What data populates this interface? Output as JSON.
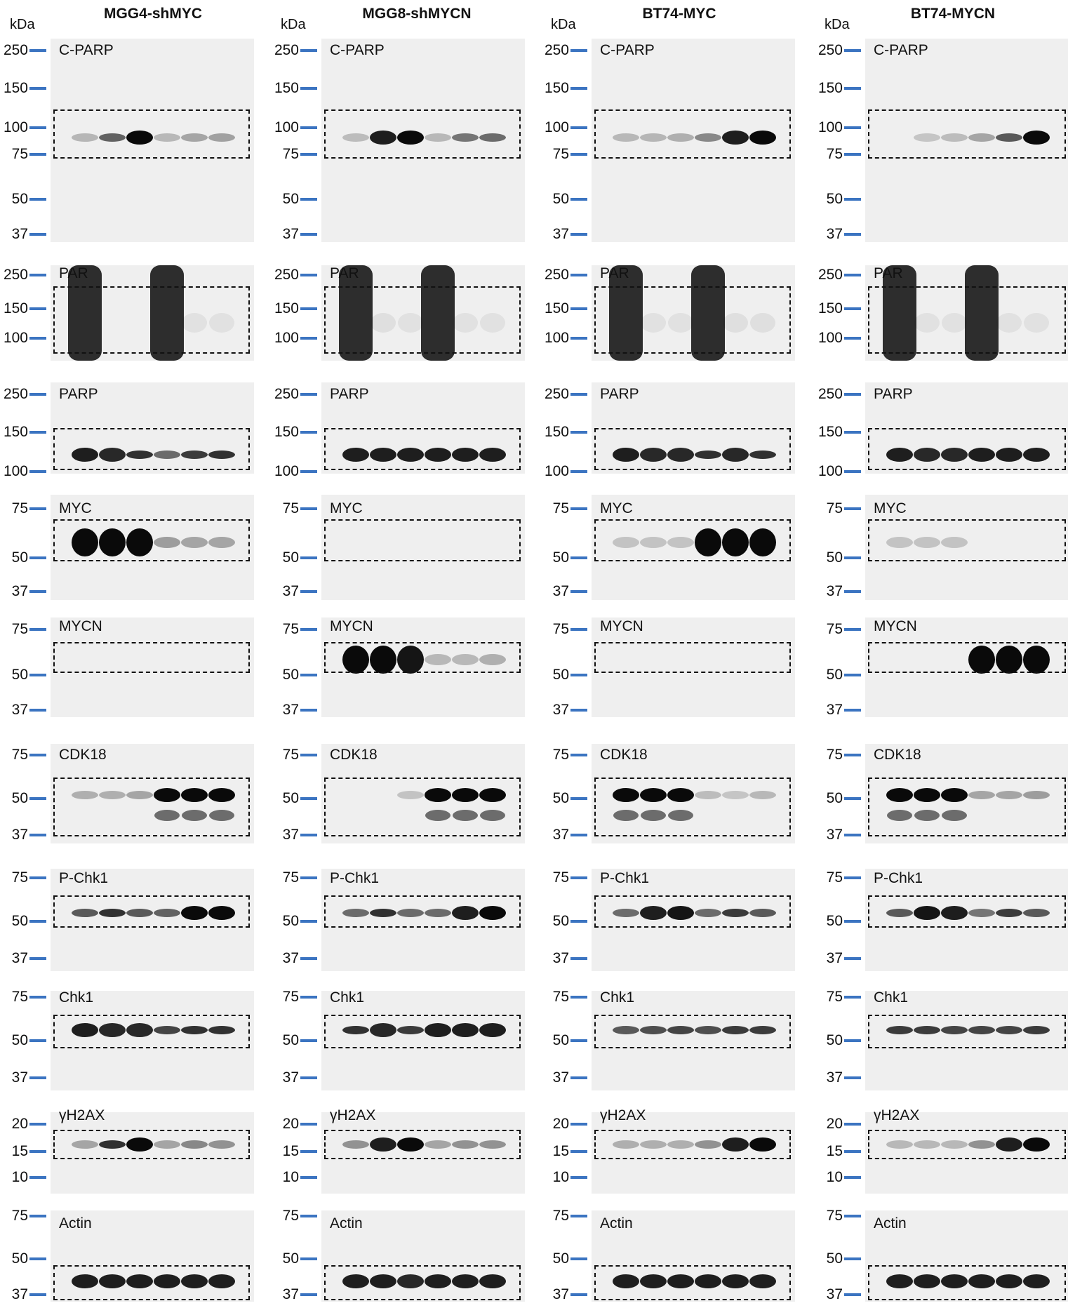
{
  "unit_label": "kDa",
  "columns": [
    {
      "title": "MGG4-shMYC",
      "strength": {
        "C-PARP": [
          0.12,
          0.55,
          1.0,
          0.1,
          0.2,
          0.22
        ],
        "PAR": [
          1.0,
          0.0,
          0.0,
          1.0,
          0.05,
          0.05
        ],
        "PARP": [
          0.9,
          0.85,
          0.8,
          0.5,
          0.75,
          0.8
        ],
        "MYC": [
          1.0,
          1.0,
          1.0,
          0.25,
          0.2,
          0.2
        ],
        "MYCN": [
          0,
          0,
          0,
          0,
          0,
          0
        ],
        "CDK18": [
          0.15,
          0.15,
          0.2,
          1.0,
          1.0,
          1.0
        ],
        "P-Chk1": [
          0.6,
          0.8,
          0.6,
          0.55,
          1.0,
          1.0
        ],
        "Chk1": [
          0.9,
          0.85,
          0.85,
          0.7,
          0.8,
          0.8
        ],
        "γH2AX": [
          0.2,
          0.8,
          1.0,
          0.2,
          0.35,
          0.3
        ],
        "Actin": [
          0.9,
          0.9,
          0.9,
          0.9,
          0.9,
          0.9
        ]
      }
    },
    {
      "title": "MGG8-shMYCN",
      "strength": {
        "C-PARP": [
          0.08,
          0.9,
          1.0,
          0.1,
          0.45,
          0.5
        ],
        "PAR": [
          1.0,
          0.08,
          0.05,
          1.0,
          0.05,
          0.05
        ],
        "PARP": [
          0.9,
          0.9,
          0.9,
          0.9,
          0.9,
          0.9
        ],
        "MYC": [
          0,
          0,
          0,
          0,
          0,
          0
        ],
        "MYCN": [
          1.0,
          1.0,
          0.95,
          0.1,
          0.1,
          0.15
        ],
        "CDK18": [
          0,
          0,
          0.05,
          1.0,
          1.0,
          1.0
        ],
        "P-Chk1": [
          0.5,
          0.8,
          0.5,
          0.5,
          0.9,
          1.0
        ],
        "Chk1": [
          0.8,
          0.85,
          0.75,
          0.9,
          0.9,
          0.9
        ],
        "γH2AX": [
          0.3,
          0.9,
          1.0,
          0.2,
          0.3,
          0.3
        ],
        "Actin": [
          0.9,
          0.9,
          0.85,
          0.9,
          0.9,
          0.9
        ]
      }
    },
    {
      "title": "BT74-MYC",
      "strength": {
        "C-PARP": [
          0.1,
          0.12,
          0.15,
          0.35,
          0.9,
          1.0
        ],
        "PAR": [
          1.0,
          0.05,
          0.05,
          1.0,
          0.08,
          0.08
        ],
        "PARP": [
          0.9,
          0.85,
          0.85,
          0.8,
          0.85,
          0.8
        ],
        "MYC": [
          0.05,
          0.05,
          0.05,
          1.0,
          1.0,
          1.0
        ],
        "MYCN": [
          0,
          0,
          0,
          0,
          0,
          0
        ],
        "CDK18": [
          1.0,
          1.0,
          1.0,
          0.08,
          0.04,
          0.1
        ],
        "P-Chk1": [
          0.5,
          0.9,
          0.95,
          0.5,
          0.75,
          0.6
        ],
        "Chk1": [
          0.6,
          0.65,
          0.7,
          0.65,
          0.75,
          0.75
        ],
        "γH2AX": [
          0.15,
          0.15,
          0.15,
          0.3,
          0.9,
          1.0
        ],
        "Actin": [
          0.9,
          0.9,
          0.9,
          0.9,
          0.9,
          0.9
        ]
      }
    },
    {
      "title": "BT74-MYCN",
      "strength": {
        "C-PARP": [
          0.0,
          0.04,
          0.08,
          0.2,
          0.6,
          1.0
        ],
        "PAR": [
          1.0,
          0.04,
          0.04,
          1.0,
          0.05,
          0.05
        ],
        "PARP": [
          0.9,
          0.85,
          0.85,
          0.9,
          0.9,
          0.9
        ],
        "MYC": [
          0.05,
          0.05,
          0.05,
          0,
          0,
          0
        ],
        "MYCN": [
          0,
          0,
          0,
          1.0,
          1.0,
          1.0
        ],
        "CDK18": [
          1.0,
          1.0,
          1.0,
          0.2,
          0.2,
          0.25
        ],
        "P-Chk1": [
          0.6,
          0.95,
          0.9,
          0.45,
          0.75,
          0.6
        ],
        "Chk1": [
          0.75,
          0.75,
          0.7,
          0.7,
          0.7,
          0.75
        ],
        "γH2AX": [
          0.1,
          0.1,
          0.1,
          0.3,
          0.9,
          1.0
        ],
        "Actin": [
          0.9,
          0.9,
          0.9,
          0.9,
          0.9,
          0.9
        ]
      }
    }
  ],
  "rows": [
    {
      "antibody": "C-PARP",
      "markers": [
        "250",
        "150",
        "100",
        "75",
        "50",
        "37"
      ]
    },
    {
      "antibody": "PAR",
      "markers": [
        "250",
        "150",
        "100"
      ]
    },
    {
      "antibody": "PARP",
      "markers": [
        "250",
        "150",
        "100"
      ]
    },
    {
      "antibody": "MYC",
      "markers": [
        "75",
        "50",
        "37"
      ]
    },
    {
      "antibody": "MYCN",
      "markers": [
        "75",
        "50",
        "37"
      ]
    },
    {
      "antibody": "CDK18",
      "markers": [
        "75",
        "50",
        "37"
      ]
    },
    {
      "antibody": "P-Chk1",
      "markers": [
        "75",
        "50",
        "37"
      ]
    },
    {
      "antibody": "Chk1",
      "markers": [
        "75",
        "50",
        "37"
      ]
    },
    {
      "antibody": "γH2AX",
      "markers": [
        "20",
        "15",
        "10"
      ]
    },
    {
      "antibody": "Actin",
      "markers": [
        "75",
        "50",
        "37"
      ]
    }
  ],
  "colors": {
    "marker_tick": "#3b74c1",
    "membrane": "#efefef",
    "band": "#0a0a0a"
  }
}
